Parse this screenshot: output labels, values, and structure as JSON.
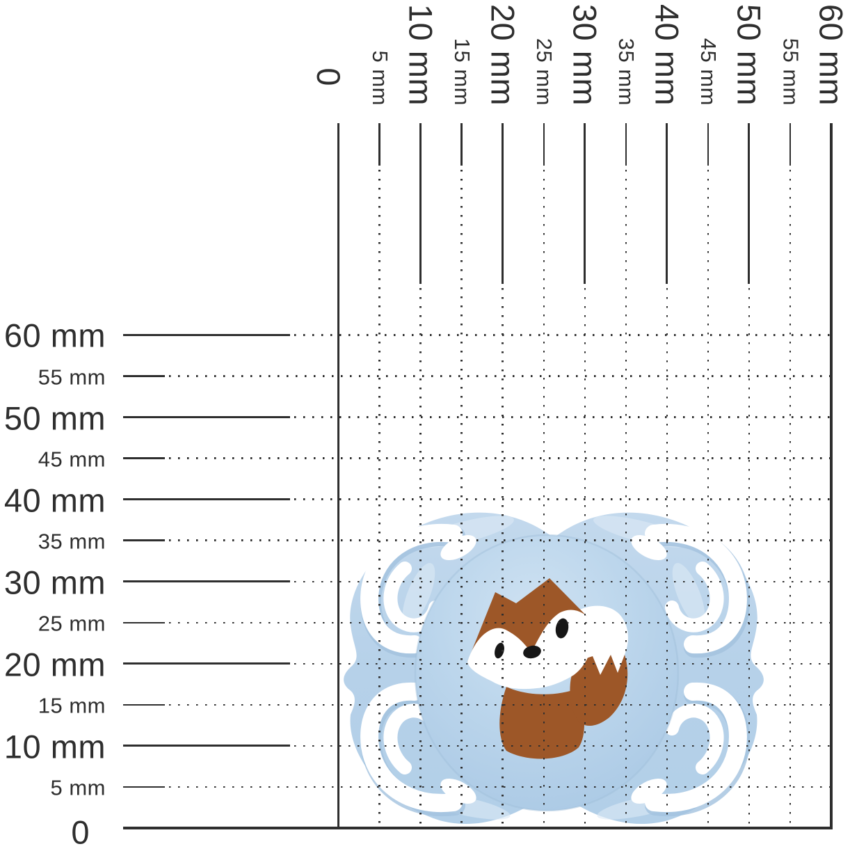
{
  "ruler": {
    "unit": "mm",
    "min": 0,
    "max": 60,
    "step": 5,
    "ticks": [
      {
        "value": 0,
        "label": "0",
        "major": true
      },
      {
        "value": 5,
        "label": "5 mm",
        "major": false
      },
      {
        "value": 10,
        "label": "10 mm",
        "major": true
      },
      {
        "value": 15,
        "label": "15 mm",
        "major": false
      },
      {
        "value": 20,
        "label": "20 mm",
        "major": true
      },
      {
        "value": 25,
        "label": "25 mm",
        "major": false
      },
      {
        "value": 30,
        "label": "30 mm",
        "major": true
      },
      {
        "value": 35,
        "label": "35 mm",
        "major": false
      },
      {
        "value": 40,
        "label": "40 mm",
        "major": true
      },
      {
        "value": 45,
        "label": "45 mm",
        "major": false
      },
      {
        "value": 50,
        "label": "50 mm",
        "major": true
      },
      {
        "value": 55,
        "label": "55 mm",
        "major": false
      },
      {
        "value": 60,
        "label": "60 mm",
        "major": true
      }
    ]
  },
  "measured_object": {
    "name": "pacifier with fox illustration",
    "approx_width_mm": 52,
    "approx_height_mm": 39
  },
  "colors": {
    "grid_line": "#2e2e2e",
    "pacifier_blue": "#b7d1e8",
    "pacifier_blue_light": "#d9e7f4",
    "pacifier_blue_shade": "#a3c2de",
    "fox_brown": "#9d5728",
    "fox_black": "#161616",
    "background": "#ffffff"
  }
}
